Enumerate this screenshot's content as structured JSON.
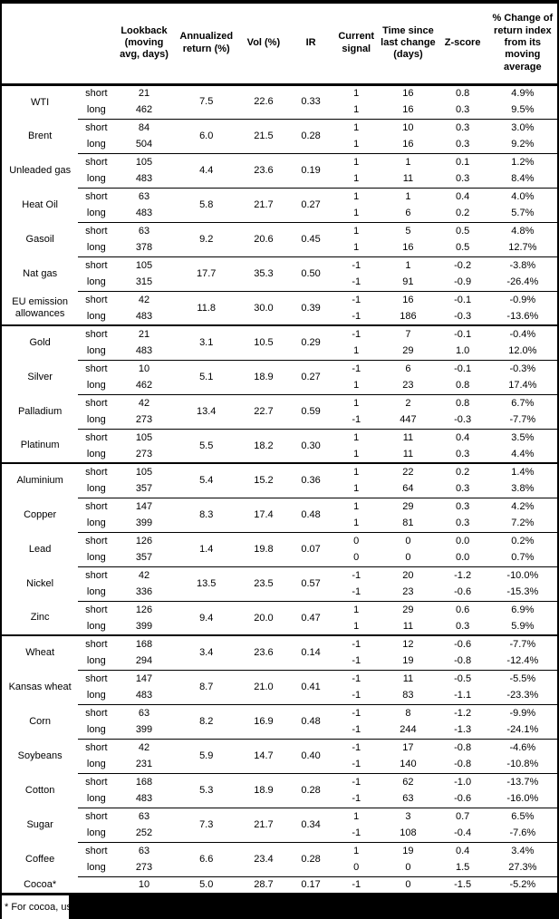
{
  "header": {
    "columns": [
      {
        "id": "lookback",
        "label": "Lookback\n(moving\navg, days)"
      },
      {
        "id": "ann_return",
        "label": "Annualized\nreturn (%)"
      },
      {
        "id": "vol",
        "label": "Vol (%)"
      },
      {
        "id": "ir",
        "label": "IR"
      },
      {
        "id": "signal",
        "label": "Current\nsignal"
      },
      {
        "id": "time_since",
        "label": "Time since\nlast change\n(days)"
      },
      {
        "id": "zscore",
        "label": "Z-score"
      },
      {
        "id": "pct_change",
        "label": "% Change of\nreturn index\nfrom its\nmoving\naverage"
      }
    ]
  },
  "rows": [
    {
      "name": "WTI",
      "ann": "7.5",
      "vol": "22.6",
      "ir": "0.33",
      "section_start": false,
      "legs": [
        {
          "pos": "short",
          "lookback": "21",
          "signal": "1",
          "time": "16",
          "z": "0.8",
          "pct": "4.9%"
        },
        {
          "pos": "long",
          "lookback": "462",
          "signal": "1",
          "time": "16",
          "z": "0.3",
          "pct": "9.5%"
        }
      ]
    },
    {
      "name": "Brent",
      "ann": "6.0",
      "vol": "21.5",
      "ir": "0.28",
      "section_start": false,
      "legs": [
        {
          "pos": "short",
          "lookback": "84",
          "signal": "1",
          "time": "10",
          "z": "0.3",
          "pct": "3.0%"
        },
        {
          "pos": "long",
          "lookback": "504",
          "signal": "1",
          "time": "16",
          "z": "0.3",
          "pct": "9.2%"
        }
      ]
    },
    {
      "name": "Unleaded gas",
      "ann": "4.4",
      "vol": "23.6",
      "ir": "0.19",
      "section_start": false,
      "legs": [
        {
          "pos": "short",
          "lookback": "105",
          "signal": "1",
          "time": "1",
          "z": "0.1",
          "pct": "1.2%"
        },
        {
          "pos": "long",
          "lookback": "483",
          "signal": "1",
          "time": "11",
          "z": "0.3",
          "pct": "8.4%"
        }
      ]
    },
    {
      "name": "Heat Oil",
      "ann": "5.8",
      "vol": "21.7",
      "ir": "0.27",
      "section_start": false,
      "legs": [
        {
          "pos": "short",
          "lookback": "63",
          "signal": "1",
          "time": "1",
          "z": "0.4",
          "pct": "4.0%"
        },
        {
          "pos": "long",
          "lookback": "483",
          "signal": "1",
          "time": "6",
          "z": "0.2",
          "pct": "5.7%"
        }
      ]
    },
    {
      "name": "Gasoil",
      "ann": "9.2",
      "vol": "20.6",
      "ir": "0.45",
      "section_start": false,
      "legs": [
        {
          "pos": "short",
          "lookback": "63",
          "signal": "1",
          "time": "5",
          "z": "0.5",
          "pct": "4.8%"
        },
        {
          "pos": "long",
          "lookback": "378",
          "signal": "1",
          "time": "16",
          "z": "0.5",
          "pct": "12.7%"
        }
      ]
    },
    {
      "name": "Nat gas",
      "ann": "17.7",
      "vol": "35.3",
      "ir": "0.50",
      "section_start": false,
      "legs": [
        {
          "pos": "short",
          "lookback": "105",
          "signal": "-1",
          "time": "1",
          "z": "-0.2",
          "pct": "-3.8%"
        },
        {
          "pos": "long",
          "lookback": "315",
          "signal": "-1",
          "time": "91",
          "z": "-0.9",
          "pct": "-26.4%"
        }
      ]
    },
    {
      "name": "EU emission allowances",
      "ann": "11.8",
      "vol": "30.0",
      "ir": "0.39",
      "section_start": false,
      "legs": [
        {
          "pos": "short",
          "lookback": "42",
          "signal": "-1",
          "time": "16",
          "z": "-0.1",
          "pct": "-0.9%"
        },
        {
          "pos": "long",
          "lookback": "483",
          "signal": "-1",
          "time": "186",
          "z": "-0.3",
          "pct": "-13.6%"
        }
      ]
    },
    {
      "name": "Gold",
      "ann": "3.1",
      "vol": "10.5",
      "ir": "0.29",
      "section_start": true,
      "legs": [
        {
          "pos": "short",
          "lookback": "21",
          "signal": "-1",
          "time": "7",
          "z": "-0.1",
          "pct": "-0.4%"
        },
        {
          "pos": "long",
          "lookback": "483",
          "signal": "1",
          "time": "29",
          "z": "1.0",
          "pct": "12.0%"
        }
      ]
    },
    {
      "name": "Silver",
      "ann": "5.1",
      "vol": "18.9",
      "ir": "0.27",
      "section_start": false,
      "legs": [
        {
          "pos": "short",
          "lookback": "10",
          "signal": "-1",
          "time": "6",
          "z": "-0.1",
          "pct": "-0.3%"
        },
        {
          "pos": "long",
          "lookback": "462",
          "signal": "1",
          "time": "23",
          "z": "0.8",
          "pct": "17.4%"
        }
      ]
    },
    {
      "name": "Palladium",
      "ann": "13.4",
      "vol": "22.7",
      "ir": "0.59",
      "section_start": false,
      "legs": [
        {
          "pos": "short",
          "lookback": "42",
          "signal": "1",
          "time": "2",
          "z": "0.8",
          "pct": "6.7%"
        },
        {
          "pos": "long",
          "lookback": "273",
          "signal": "-1",
          "time": "447",
          "z": "-0.3",
          "pct": "-7.7%"
        }
      ]
    },
    {
      "name": "Platinum",
      "ann": "5.5",
      "vol": "18.2",
      "ir": "0.30",
      "section_start": false,
      "legs": [
        {
          "pos": "short",
          "lookback": "105",
          "signal": "1",
          "time": "11",
          "z": "0.4",
          "pct": "3.5%"
        },
        {
          "pos": "long",
          "lookback": "273",
          "signal": "1",
          "time": "11",
          "z": "0.3",
          "pct": "4.4%"
        }
      ]
    },
    {
      "name": "Aluminium",
      "ann": "5.4",
      "vol": "15.2",
      "ir": "0.36",
      "section_start": true,
      "legs": [
        {
          "pos": "short",
          "lookback": "105",
          "signal": "1",
          "time": "22",
          "z": "0.2",
          "pct": "1.4%"
        },
        {
          "pos": "long",
          "lookback": "357",
          "signal": "1",
          "time": "64",
          "z": "0.3",
          "pct": "3.8%"
        }
      ]
    },
    {
      "name": "Copper",
      "ann": "8.3",
      "vol": "17.4",
      "ir": "0.48",
      "section_start": false,
      "legs": [
        {
          "pos": "short",
          "lookback": "147",
          "signal": "1",
          "time": "29",
          "z": "0.3",
          "pct": "4.2%"
        },
        {
          "pos": "long",
          "lookback": "399",
          "signal": "1",
          "time": "81",
          "z": "0.3",
          "pct": "7.2%"
        }
      ]
    },
    {
      "name": "Lead",
      "ann": "1.4",
      "vol": "19.8",
      "ir": "0.07",
      "section_start": false,
      "legs": [
        {
          "pos": "short",
          "lookback": "126",
          "signal": "0",
          "time": "0",
          "z": "0.0",
          "pct": "0.2%"
        },
        {
          "pos": "long",
          "lookback": "357",
          "signal": "0",
          "time": "0",
          "z": "0.0",
          "pct": "0.7%"
        }
      ]
    },
    {
      "name": "Nickel",
      "ann": "13.5",
      "vol": "23.5",
      "ir": "0.57",
      "section_start": false,
      "legs": [
        {
          "pos": "short",
          "lookback": "42",
          "signal": "-1",
          "time": "20",
          "z": "-1.2",
          "pct": "-10.0%"
        },
        {
          "pos": "long",
          "lookback": "336",
          "signal": "-1",
          "time": "23",
          "z": "-0.6",
          "pct": "-15.3%"
        }
      ]
    },
    {
      "name": "Zinc",
      "ann": "9.4",
      "vol": "20.0",
      "ir": "0.47",
      "section_start": false,
      "legs": [
        {
          "pos": "short",
          "lookback": "126",
          "signal": "1",
          "time": "29",
          "z": "0.6",
          "pct": "6.9%"
        },
        {
          "pos": "long",
          "lookback": "399",
          "signal": "1",
          "time": "11",
          "z": "0.3",
          "pct": "5.9%"
        }
      ]
    },
    {
      "name": "Wheat",
      "ann": "3.4",
      "vol": "23.6",
      "ir": "0.14",
      "section_start": true,
      "legs": [
        {
          "pos": "short",
          "lookback": "168",
          "signal": "-1",
          "time": "12",
          "z": "-0.6",
          "pct": "-7.7%"
        },
        {
          "pos": "long",
          "lookback": "294",
          "signal": "-1",
          "time": "19",
          "z": "-0.8",
          "pct": "-12.4%"
        }
      ]
    },
    {
      "name": "Kansas wheat",
      "ann": "8.7",
      "vol": "21.0",
      "ir": "0.41",
      "section_start": false,
      "legs": [
        {
          "pos": "short",
          "lookback": "147",
          "signal": "-1",
          "time": "11",
          "z": "-0.5",
          "pct": "-5.5%"
        },
        {
          "pos": "long",
          "lookback": "483",
          "signal": "-1",
          "time": "83",
          "z": "-1.1",
          "pct": "-23.3%"
        }
      ]
    },
    {
      "name": "Corn",
      "ann": "8.2",
      "vol": "16.9",
      "ir": "0.48",
      "section_start": false,
      "legs": [
        {
          "pos": "short",
          "lookback": "63",
          "signal": "-1",
          "time": "8",
          "z": "-1.2",
          "pct": "-9.9%"
        },
        {
          "pos": "long",
          "lookback": "399",
          "signal": "-1",
          "time": "244",
          "z": "-1.3",
          "pct": "-24.1%"
        }
      ]
    },
    {
      "name": "Soybeans",
      "ann": "5.9",
      "vol": "14.7",
      "ir": "0.40",
      "section_start": false,
      "legs": [
        {
          "pos": "short",
          "lookback": "42",
          "signal": "-1",
          "time": "17",
          "z": "-0.8",
          "pct": "-4.6%"
        },
        {
          "pos": "long",
          "lookback": "231",
          "signal": "-1",
          "time": "140",
          "z": "-0.8",
          "pct": "-10.8%"
        }
      ]
    },
    {
      "name": "Cotton",
      "ann": "5.3",
      "vol": "18.9",
      "ir": "0.28",
      "section_start": false,
      "legs": [
        {
          "pos": "short",
          "lookback": "168",
          "signal": "-1",
          "time": "62",
          "z": "-1.0",
          "pct": "-13.7%"
        },
        {
          "pos": "long",
          "lookback": "483",
          "signal": "-1",
          "time": "63",
          "z": "-0.6",
          "pct": "-16.0%"
        }
      ]
    },
    {
      "name": "Sugar",
      "ann": "7.3",
      "vol": "21.7",
      "ir": "0.34",
      "section_start": false,
      "legs": [
        {
          "pos": "short",
          "lookback": "63",
          "signal": "1",
          "time": "3",
          "z": "0.7",
          "pct": "6.5%"
        },
        {
          "pos": "long",
          "lookback": "252",
          "signal": "-1",
          "time": "108",
          "z": "-0.4",
          "pct": "-7.6%"
        }
      ]
    },
    {
      "name": "Coffee",
      "ann": "6.6",
      "vol": "23.4",
      "ir": "0.28",
      "section_start": false,
      "legs": [
        {
          "pos": "short",
          "lookback": "63",
          "signal": "1",
          "time": "19",
          "z": "0.4",
          "pct": "3.4%"
        },
        {
          "pos": "long",
          "lookback": "273",
          "signal": "0",
          "time": "0",
          "z": "1.5",
          "pct": "27.3%"
        }
      ]
    },
    {
      "name": "Cocoa*",
      "ann": "5.0",
      "vol": "28.7",
      "ir": "0.17",
      "section_start": false,
      "legs": [
        {
          "pos": "",
          "lookback": "10",
          "signal": "-1",
          "time": "0",
          "z": "-1.5",
          "pct": "-5.2%"
        }
      ]
    }
  ],
  "footnote": {
    "text": "* For cocoa, uses c"
  },
  "colors": {
    "text": "#000000",
    "background": "#ffffff",
    "redaction": "#000000"
  }
}
